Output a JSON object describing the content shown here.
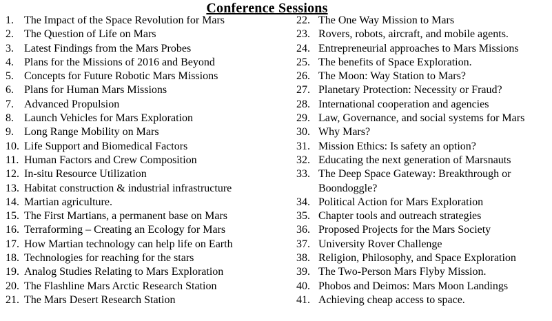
{
  "page": {
    "title": "Conference Sessions",
    "background_color": "#ffffff",
    "text_color": "#000000"
  },
  "sessions": {
    "left_column": [
      {
        "num": "1.",
        "text": "The Impact of the Space Revolution for Mars"
      },
      {
        "num": "2.",
        "text": "The Question of Life on Mars"
      },
      {
        "num": "3.",
        "text": "Latest Findings from the Mars Probes"
      },
      {
        "num": "4.",
        "text": "Plans for the Missions of 2016 and Beyond"
      },
      {
        "num": "5.",
        "text": "Concepts for Future Robotic Mars Missions"
      },
      {
        "num": "6.",
        "text": "Plans for Human Mars Missions"
      },
      {
        "num": "7.",
        "text": "Advanced Propulsion"
      },
      {
        "num": "8.",
        "text": "Launch Vehicles for Mars Exploration"
      },
      {
        "num": "9.",
        "text": "Long Range Mobility on Mars"
      },
      {
        "num": "10.",
        "text": "Life Support and Biomedical Factors"
      },
      {
        "num": "11.",
        "text": "Human Factors and Crew Composition"
      },
      {
        "num": "12.",
        "text": "In-situ Resource Utilization"
      },
      {
        "num": "13.",
        "text": "Habitat construction & industrial infrastructure"
      },
      {
        "num": "14.",
        "text": "Martian agriculture."
      },
      {
        "num": "15.",
        "text": "The First Martians, a permanent base on Mars"
      },
      {
        "num": "16.",
        "text": "Terraforming – Creating an Ecology for Mars"
      },
      {
        "num": "17.",
        "text": "How Martian technology can help life on Earth"
      },
      {
        "num": "18.",
        "text": "Technologies for reaching for the stars"
      },
      {
        "num": "19.",
        "text": "Analog Studies Relating to Mars Exploration"
      },
      {
        "num": "20.",
        "text": "The Flashline Mars Arctic Research Station"
      },
      {
        "num": "21.",
        "text": "The Mars Desert Research Station"
      }
    ],
    "right_column": [
      {
        "num": "22.",
        "text": "The One Way Mission to Mars"
      },
      {
        "num": "23.",
        "text": "Rovers, robots, aircraft, and mobile agents."
      },
      {
        "num": "24.",
        "text": "Entrepreneurial approaches to Mars Missions"
      },
      {
        "num": "25.",
        "text": "The benefits of Space Exploration."
      },
      {
        "num": "26.",
        "text": "The Moon: Way Station to Mars?"
      },
      {
        "num": "27.",
        "text": "Planetary Protection: Necessity or Fraud?"
      },
      {
        "num": "28.",
        "text": "International cooperation and agencies"
      },
      {
        "num": "29.",
        "text": "Law, Governance, and social systems for Mars"
      },
      {
        "num": "30.",
        "text": "Why Mars?"
      },
      {
        "num": "31.",
        "text": "Mission Ethics: Is safety an option?"
      },
      {
        "num": "32.",
        "text": "Educating the next generation of Marsnauts"
      },
      {
        "num": "33.",
        "text": "The Deep Space Gateway: Breakthrough or Boondoggle?"
      },
      {
        "num": "34.",
        "text": "Political Action for Mars Exploration"
      },
      {
        "num": "35.",
        "text": "Chapter tools and outreach strategies"
      },
      {
        "num": "36.",
        "text": "Proposed Projects for the Mars Society"
      },
      {
        "num": "37.",
        "text": "University Rover Challenge"
      },
      {
        "num": "38.",
        "text": "Religion, Philosophy, and Space Exploration"
      },
      {
        "num": "39.",
        "text": "The Two-Person Mars Flyby Mission."
      },
      {
        "num": "40.",
        "text": "Phobos and Deimos: Mars Moon Landings"
      },
      {
        "num": "41.",
        "text": "Achieving cheap access to space."
      }
    ]
  }
}
